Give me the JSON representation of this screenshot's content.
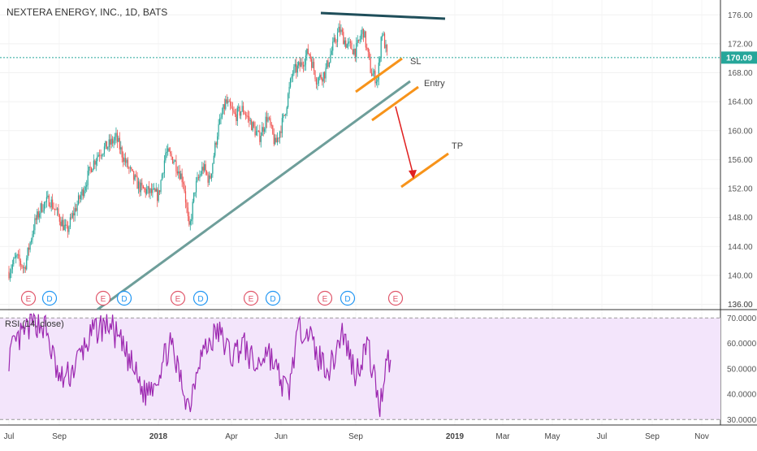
{
  "chart_data": [
    {
      "type": "candlestick",
      "title": "NEXTERA ENERGY, INC., 1D, BATS",
      "y_axis_ticks": [
        136,
        140,
        144,
        148,
        152,
        156,
        160,
        164,
        168,
        172,
        176
      ],
      "y_tick_labels": [
        "136.00",
        "140.00",
        "144.00",
        "148.00",
        "152.00",
        "156.00",
        "160.00",
        "164.00",
        "168.00",
        "172.00",
        "176.00"
      ],
      "ylim": [
        135.5,
        177.6
      ],
      "last_price": 170.09,
      "last_price_label": "170.09",
      "x_tick_labels": [
        "Jul",
        "Sep",
        "2018",
        "Apr",
        "Jun",
        "Sep",
        "2019",
        "Mar",
        "May",
        "Jul",
        "Sep",
        "Nov"
      ],
      "price_path": [
        [
          "2017-07-01",
          140.5
        ],
        [
          "2017-07-10",
          142.5
        ],
        [
          "2017-07-20",
          141
        ],
        [
          "2017-08-01",
          147
        ],
        [
          "2017-08-10",
          149.5
        ],
        [
          "2017-08-20",
          150.5
        ],
        [
          "2017-09-01",
          148
        ],
        [
          "2017-09-10",
          146
        ],
        [
          "2017-09-20",
          149
        ],
        [
          "2017-10-01",
          152
        ],
        [
          "2017-10-10",
          155
        ],
        [
          "2017-10-20",
          157
        ],
        [
          "2017-11-01",
          158
        ],
        [
          "2017-11-10",
          159
        ],
        [
          "2017-11-20",
          156
        ],
        [
          "2017-12-01",
          153.5
        ],
        [
          "2017-12-10",
          152
        ],
        [
          "2018-01-01",
          151
        ],
        [
          "2018-01-10",
          157
        ],
        [
          "2018-01-20",
          156
        ],
        [
          "2018-02-01",
          153
        ],
        [
          "2018-02-08",
          146
        ],
        [
          "2018-02-15",
          152
        ],
        [
          "2018-02-25",
          155
        ],
        [
          "2018-03-05",
          153
        ],
        [
          "2018-03-15",
          160
        ],
        [
          "2018-03-25",
          164
        ],
        [
          "2018-04-05",
          162
        ],
        [
          "2018-04-15",
          163
        ],
        [
          "2018-04-25",
          161
        ],
        [
          "2018-05-05",
          159
        ],
        [
          "2018-05-15",
          162
        ],
        [
          "2018-05-25",
          158
        ],
        [
          "2018-06-05",
          162
        ],
        [
          "2018-06-15",
          168
        ],
        [
          "2018-06-25",
          169
        ],
        [
          "2018-07-05",
          171
        ],
        [
          "2018-07-15",
          167
        ],
        [
          "2018-07-25",
          168
        ],
        [
          "2018-08-05",
          172
        ],
        [
          "2018-08-12",
          174
        ],
        [
          "2018-08-20",
          172
        ],
        [
          "2018-09-01",
          171
        ],
        [
          "2018-09-10",
          174
        ],
        [
          "2018-09-20",
          168
        ],
        [
          "2018-09-28",
          167
        ],
        [
          "2018-10-03",
          174
        ],
        [
          "2018-10-10",
          170
        ]
      ],
      "events": [
        {
          "date": "2017-07-25",
          "label": "E"
        },
        {
          "date": "2017-08-20",
          "label": "D"
        },
        {
          "date": "2017-10-25",
          "label": "E"
        },
        {
          "date": "2017-11-20",
          "label": "D"
        },
        {
          "date": "2018-01-25",
          "label": "E"
        },
        {
          "date": "2018-02-22",
          "label": "D"
        },
        {
          "date": "2018-04-25",
          "label": "E"
        },
        {
          "date": "2018-05-22",
          "label": "D"
        },
        {
          "date": "2018-07-25",
          "label": "E"
        },
        {
          "date": "2018-08-22",
          "label": "D"
        },
        {
          "date": "2018-10-20",
          "label": "E"
        }
      ],
      "annotations": [
        {
          "label": "SL",
          "color": "#F7931A"
        },
        {
          "label": "Entry",
          "color": "#F7931A"
        },
        {
          "label": "TP",
          "color": "#F7931A"
        }
      ],
      "trend_line_color": "#6E9E9A",
      "resistance_line_color": "#1F4E5A",
      "down_arrow_color": "#E02020"
    },
    {
      "type": "line",
      "title": "RSI (14, close)",
      "ylim": [
        28.5,
        72
      ],
      "y_tick_labels": [
        "30.0000",
        "40.0000",
        "50.0000",
        "60.0000",
        "70.0000"
      ],
      "y_axis_ticks": [
        30,
        40,
        50,
        60,
        70
      ],
      "upper_band": 70,
      "lower_band": 30,
      "series_color": "#9C27B0",
      "band_fill": "#F3E5FB",
      "rsi_path": [
        [
          "2017-07-01",
          55
        ],
        [
          "2017-07-15",
          62
        ],
        [
          "2017-08-01",
          69
        ],
        [
          "2017-08-15",
          66
        ],
        [
          "2017-09-01",
          45
        ],
        [
          "2017-09-15",
          48
        ],
        [
          "2017-10-01",
          58
        ],
        [
          "2017-10-15",
          65
        ],
        [
          "2017-11-01",
          68
        ],
        [
          "2017-11-15",
          60
        ],
        [
          "2017-12-01",
          50
        ],
        [
          "2017-12-15",
          40
        ],
        [
          "2018-01-01",
          48
        ],
        [
          "2018-01-15",
          60
        ],
        [
          "2018-02-01",
          42
        ],
        [
          "2018-02-08",
          35
        ],
        [
          "2018-02-20",
          55
        ],
        [
          "2018-03-01",
          58
        ],
        [
          "2018-03-15",
          65
        ],
        [
          "2018-04-01",
          55
        ],
        [
          "2018-04-15",
          60
        ],
        [
          "2018-05-01",
          50
        ],
        [
          "2018-05-15",
          58
        ],
        [
          "2018-06-01",
          45
        ],
        [
          "2018-06-10",
          40
        ],
        [
          "2018-06-20",
          62
        ],
        [
          "2018-07-01",
          68
        ],
        [
          "2018-07-15",
          55
        ],
        [
          "2018-08-01",
          50
        ],
        [
          "2018-08-15",
          65
        ],
        [
          "2018-09-01",
          48
        ],
        [
          "2018-09-15",
          60
        ],
        [
          "2018-10-01",
          35
        ],
        [
          "2018-10-10",
          58
        ],
        [
          "2018-10-15",
          48
        ]
      ]
    }
  ]
}
